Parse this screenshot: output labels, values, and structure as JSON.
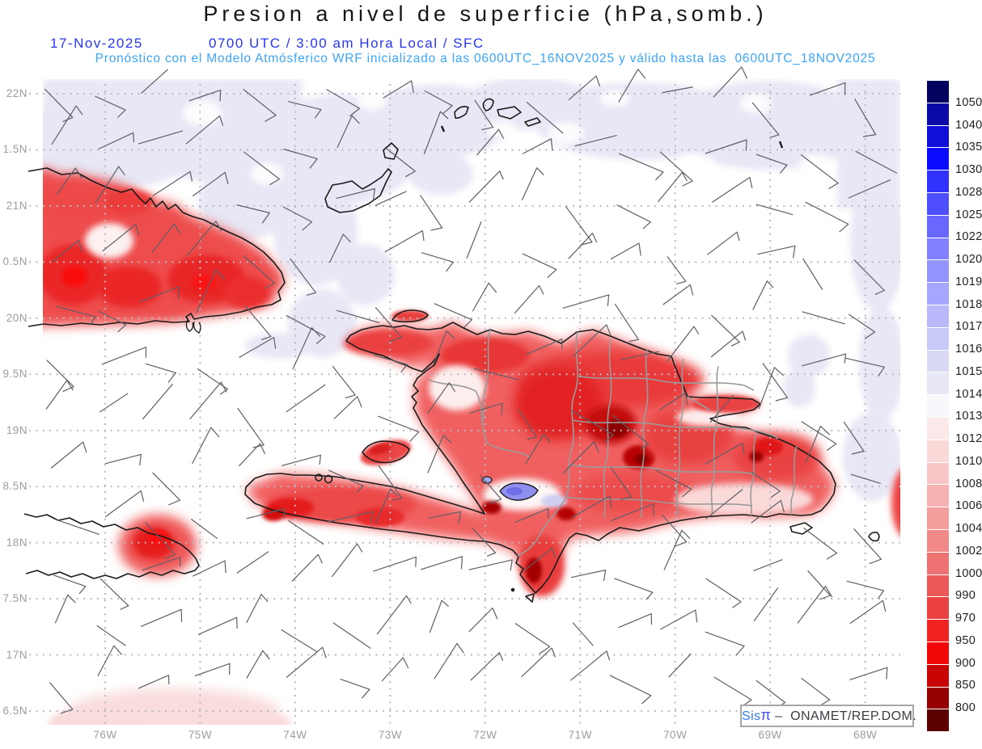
{
  "title": "Presion a nivel de superficie (hPa,somb.)",
  "header": {
    "date": "17-Nov-2025",
    "time": "0700 UTC / 3:00 am Hora Local / SFC",
    "subtitle": "Pronóstico con el Modelo Atmósferico WRF inicializado a las 0600UTC_16NOV2025 y válido hasta las  0600UTC_18NOV2025"
  },
  "axes": {
    "lat_labels": [
      "22N",
      "1.5N",
      "21N",
      "0.5N",
      "20N",
      "9.5N",
      "19N",
      "8.5N",
      "18N",
      "7.5N",
      "17N",
      "6.5N"
    ],
    "lon_labels": [
      "76W",
      "75W",
      "74W",
      "73W",
      "72W",
      "71W",
      "70W",
      "69W",
      "68W"
    ]
  },
  "colorbar": {
    "tick_labels": [
      "1050",
      "1040",
      "1035",
      "1030",
      "1028",
      "1025",
      "1022",
      "1020",
      "1019",
      "1018",
      "1017",
      "1016",
      "1015",
      "1014",
      "1013",
      "1012",
      "1010",
      "1008",
      "1006",
      "1004",
      "1002",
      "1000",
      "990",
      "970",
      "950",
      "900",
      "850",
      "800"
    ],
    "cell_colors_top_to_bottom": [
      "#03035f",
      "#0a0aa8",
      "#0f0fd8",
      "#0b0bff",
      "#3232ff",
      "#4e4eff",
      "#6868ff",
      "#8181ff",
      "#9494ff",
      "#a6a6fe",
      "#b8b8fb",
      "#c9c9f8",
      "#d9d9f5",
      "#e7e7f5",
      "#f7f7fc",
      "#fce8e8",
      "#fad8d8",
      "#f8c6c6",
      "#f6b2b2",
      "#f49e9e",
      "#f28989",
      "#ef7272",
      "#ec5858",
      "#ea4040",
      "#f02222",
      "#f30808",
      "#c90404",
      "#960101",
      "#5c0000"
    ]
  },
  "credit": {
    "sis": "Sis",
    "pi": "π",
    "org": " –  ONAMET/REP.DOM."
  },
  "colors": {
    "header_blue": "#2936f2",
    "subtitle_cyan": "#39a5fc",
    "axis_gray": "#9b9ba3",
    "ocean_shade": "#e7e7f5",
    "credit_blue": "#2b7bf3",
    "pi_blue": "#444df2"
  }
}
